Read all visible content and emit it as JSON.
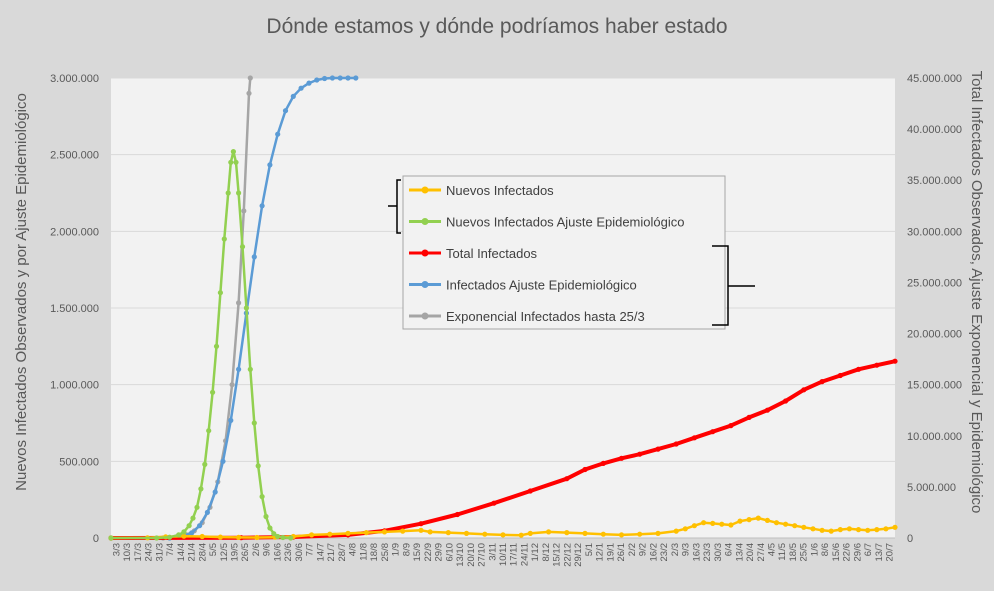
{
  "chart_data": {
    "type": "line",
    "title": "Dónde estamos y dónde podríamos haber estado",
    "y_left_label": "Nuevos Infectados Observados y por Ajuste Epidemiológico",
    "y_right_label": "Total Infectados Observados, Ajuste Exponencial y Epidemiológico",
    "y_left_range": [
      0,
      3000000
    ],
    "y_right_range": [
      0,
      45000000
    ],
    "y_left_ticks": [
      "0",
      "500.000",
      "1.000.000",
      "1.500.000",
      "2.000.000",
      "2.500.000",
      "3.000.000"
    ],
    "y_right_ticks": [
      "0",
      "5.000.000",
      "10.000.000",
      "15.000.000",
      "20.000.000",
      "25.000.000",
      "30.000.000",
      "35.000.000",
      "40.000.000",
      "45.000.000"
    ],
    "x_range_days": [
      0,
      504
    ],
    "x_ticks": [
      "3/3",
      "10/3",
      "17/3",
      "24/3",
      "31/3",
      "7/4",
      "14/4",
      "21/4",
      "28/4",
      "5/5",
      "12/5",
      "19/5",
      "26/5",
      "2/6",
      "9/6",
      "16/6",
      "23/6",
      "30/6",
      "7/7",
      "14/7",
      "21/7",
      "28/7",
      "4/8",
      "11/8",
      "18/8",
      "25/8",
      "1/9",
      "8/9",
      "15/9",
      "22/9",
      "29/9",
      "6/10",
      "13/10",
      "20/10",
      "27/10",
      "3/11",
      "10/11",
      "17/11",
      "24/11",
      "1/12",
      "8/12",
      "15/12",
      "22/12",
      "29/12",
      "5/1",
      "12/1",
      "19/1",
      "26/1",
      "2/2",
      "9/2",
      "16/2",
      "23/2",
      "2/3",
      "9/3",
      "16/3",
      "23/3",
      "30/3",
      "6/4",
      "13/4",
      "20/4",
      "27/4",
      "4/5",
      "11/5",
      "18/5",
      "25/5",
      "1/6",
      "8/6",
      "15/6",
      "22/6",
      "29/6",
      "6/7",
      "13/7",
      "20/7"
    ],
    "grid": true,
    "legend_position": "center",
    "series": [
      {
        "name": "Nuevos Infectados",
        "axis": "left",
        "color": "#ffc000",
        "points": [
          [
            0,
            0
          ],
          [
            28,
            1000
          ],
          [
            42,
            8000
          ],
          [
            56,
            12000
          ],
          [
            70,
            10000
          ],
          [
            84,
            6000
          ],
          [
            98,
            4000
          ],
          [
            112,
            3000
          ],
          [
            126,
            5000
          ],
          [
            140,
            10000
          ],
          [
            154,
            20000
          ],
          [
            168,
            25000
          ],
          [
            182,
            30000
          ],
          [
            196,
            35000
          ],
          [
            210,
            40000
          ],
          [
            224,
            45000
          ],
          [
            238,
            50000
          ],
          [
            245,
            40000
          ],
          [
            259,
            35000
          ],
          [
            273,
            30000
          ],
          [
            287,
            25000
          ],
          [
            301,
            20000
          ],
          [
            315,
            18000
          ],
          [
            322,
            30000
          ],
          [
            336,
            40000
          ],
          [
            350,
            35000
          ],
          [
            364,
            30000
          ],
          [
            378,
            25000
          ],
          [
            392,
            20000
          ],
          [
            406,
            25000
          ],
          [
            420,
            30000
          ],
          [
            434,
            45000
          ],
          [
            441,
            60000
          ],
          [
            448,
            80000
          ],
          [
            455,
            100000
          ],
          [
            462,
            95000
          ],
          [
            469,
            90000
          ],
          [
            476,
            85000
          ],
          [
            483,
            110000
          ],
          [
            490,
            120000
          ],
          [
            497,
            130000
          ],
          [
            504,
            115000
          ],
          [
            511,
            100000
          ],
          [
            518,
            90000
          ],
          [
            525,
            80000
          ],
          [
            532,
            70000
          ],
          [
            539,
            60000
          ],
          [
            546,
            50000
          ],
          [
            553,
            45000
          ],
          [
            560,
            55000
          ],
          [
            567,
            60000
          ],
          [
            574,
            55000
          ],
          [
            581,
            50000
          ],
          [
            588,
            55000
          ],
          [
            595,
            60000
          ],
          [
            602,
            70000
          ]
        ]
      },
      {
        "name": "Nuevos Infectados Ajuste Epidemiológico",
        "axis": "left",
        "color": "#92d050",
        "points": [
          [
            0,
            0
          ],
          [
            35,
            0
          ],
          [
            45,
            5000
          ],
          [
            52,
            20000
          ],
          [
            56,
            40000
          ],
          [
            60,
            80000
          ],
          [
            63,
            130000
          ],
          [
            66,
            200000
          ],
          [
            69,
            320000
          ],
          [
            72,
            480000
          ],
          [
            75,
            700000
          ],
          [
            78,
            950000
          ],
          [
            81,
            1250000
          ],
          [
            84,
            1600000
          ],
          [
            87,
            1950000
          ],
          [
            90,
            2250000
          ],
          [
            92,
            2450000
          ],
          [
            94,
            2520000
          ],
          [
            96,
            2450000
          ],
          [
            98,
            2250000
          ],
          [
            101,
            1900000
          ],
          [
            104,
            1500000
          ],
          [
            107,
            1100000
          ],
          [
            110,
            750000
          ],
          [
            113,
            470000
          ],
          [
            116,
            270000
          ],
          [
            119,
            140000
          ],
          [
            122,
            65000
          ],
          [
            125,
            28000
          ],
          [
            128,
            10000
          ],
          [
            132,
            3000
          ],
          [
            138,
            0
          ]
        ]
      },
      {
        "name": "Total Infectados",
        "axis": "right",
        "color": "#ff0000",
        "points": [
          [
            0,
            0
          ],
          [
            100,
            30000
          ],
          [
            140,
            100000
          ],
          [
            182,
            300000
          ],
          [
            210,
            700000
          ],
          [
            238,
            1400000
          ],
          [
            266,
            2300000
          ],
          [
            294,
            3400000
          ],
          [
            322,
            4600000
          ],
          [
            350,
            5800000
          ],
          [
            364,
            6700000
          ],
          [
            378,
            7300000
          ],
          [
            392,
            7800000
          ],
          [
            406,
            8200000
          ],
          [
            420,
            8700000
          ],
          [
            434,
            9200000
          ],
          [
            448,
            9800000
          ],
          [
            462,
            10400000
          ],
          [
            476,
            11000000
          ],
          [
            490,
            11800000
          ],
          [
            504,
            12500000
          ],
          [
            518,
            13400000
          ],
          [
            532,
            14500000
          ],
          [
            546,
            15300000
          ],
          [
            560,
            15900000
          ],
          [
            574,
            16500000
          ],
          [
            588,
            16900000
          ],
          [
            602,
            17300000
          ]
        ]
      },
      {
        "name": "Infectados Ajuste Epidemiológico",
        "axis": "right",
        "color": "#5b9bd5",
        "points": [
          [
            0,
            0
          ],
          [
            45,
            0
          ],
          [
            55,
            200000
          ],
          [
            62,
            500000
          ],
          [
            68,
            1200000
          ],
          [
            74,
            2500000
          ],
          [
            80,
            4500000
          ],
          [
            86,
            7500000
          ],
          [
            92,
            11500000
          ],
          [
            98,
            16500000
          ],
          [
            104,
            22000000
          ],
          [
            110,
            27500000
          ],
          [
            116,
            32500000
          ],
          [
            122,
            36500000
          ],
          [
            128,
            39500000
          ],
          [
            134,
            41800000
          ],
          [
            140,
            43200000
          ],
          [
            146,
            44000000
          ],
          [
            152,
            44500000
          ],
          [
            158,
            44800000
          ],
          [
            164,
            44950000
          ],
          [
            170,
            45000000
          ],
          [
            176,
            45000000
          ],
          [
            182,
            45000000
          ],
          [
            188,
            45000000
          ]
        ]
      },
      {
        "name": "Exponencial Infectados hasta 25/3",
        "axis": "right",
        "color": "#a5a5a5",
        "points": [
          [
            0,
            0
          ],
          [
            40,
            0
          ],
          [
            50,
            100000
          ],
          [
            58,
            300000
          ],
          [
            64,
            700000
          ],
          [
            70,
            1500000
          ],
          [
            76,
            3000000
          ],
          [
            82,
            5500000
          ],
          [
            88,
            9500000
          ],
          [
            93,
            15000000
          ],
          [
            98,
            23000000
          ],
          [
            102,
            32000000
          ],
          [
            106,
            43500000
          ],
          [
            107,
            45000000
          ]
        ]
      }
    ]
  }
}
